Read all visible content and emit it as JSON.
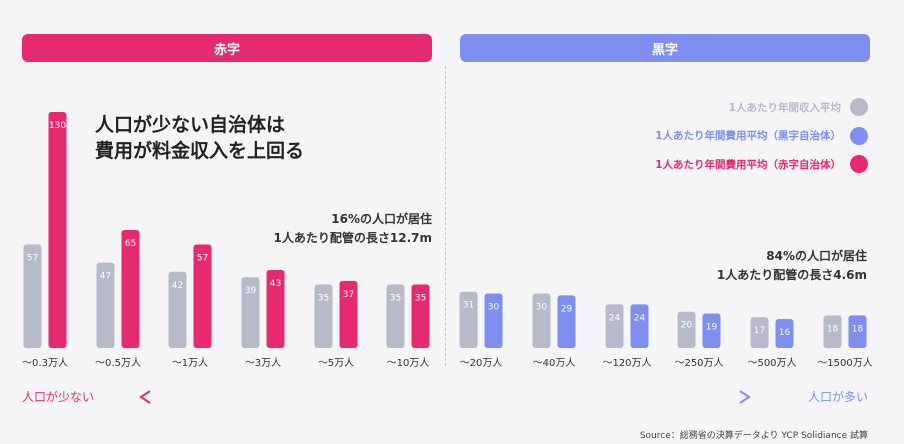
{
  "banners": {
    "left": "赤字",
    "right": "黒字"
  },
  "headline": [
    "人口が少ない自治体は",
    "費用が料金収入を上回る"
  ],
  "annotations": {
    "red": [
      "16%の人口が居住",
      "1人あたり配管の長さ12.7m"
    ],
    "blue": [
      "84%の人口が居住",
      "1人あたり配管の長さ4.6m"
    ]
  },
  "legend": [
    {
      "label": "1人あたり年間収入平均",
      "color": "#b7bac9"
    },
    {
      "label": "1人あたり年間費用平均（黒字自治体）",
      "color": "#7f8ff0"
    },
    {
      "label": "1人あたり年間費用平均（赤字自治体）",
      "color": "#e62a70"
    }
  ],
  "arrow": {
    "left_label": "人口が少ない",
    "right_label": "人口が多い"
  },
  "source": "Source：総務省の決算データより YCP Solidiance 試算",
  "chart_data": {
    "type": "bar",
    "categories": [
      "〜0.3万人",
      "〜0.5万人",
      "〜1万人",
      "〜3万人",
      "〜5万人",
      "〜10万人",
      "〜20万人",
      "〜40万人",
      "〜120万人",
      "〜250万人",
      "〜500万人",
      "〜1500万人"
    ],
    "series": [
      {
        "name": "1人あたり年間収入平均",
        "values": [
          57,
          47,
          42,
          39,
          35,
          35,
          31,
          30,
          24,
          20,
          17,
          18
        ],
        "color": "#b7bac9"
      },
      {
        "name": "1人あたり年間費用平均",
        "values": [
          130,
          65,
          57,
          43,
          37,
          35,
          30,
          29,
          24,
          19,
          16,
          18
        ],
        "colors_by_group": {
          "deficit": "#e62a70",
          "surplus": "#7f8ff0"
        }
      }
    ],
    "groups": {
      "deficit": [
        0,
        1,
        2,
        3,
        4,
        5
      ],
      "surplus": [
        6,
        7,
        8,
        9,
        10,
        11
      ]
    },
    "ylim": [
      0,
      130
    ],
    "grid": false
  }
}
